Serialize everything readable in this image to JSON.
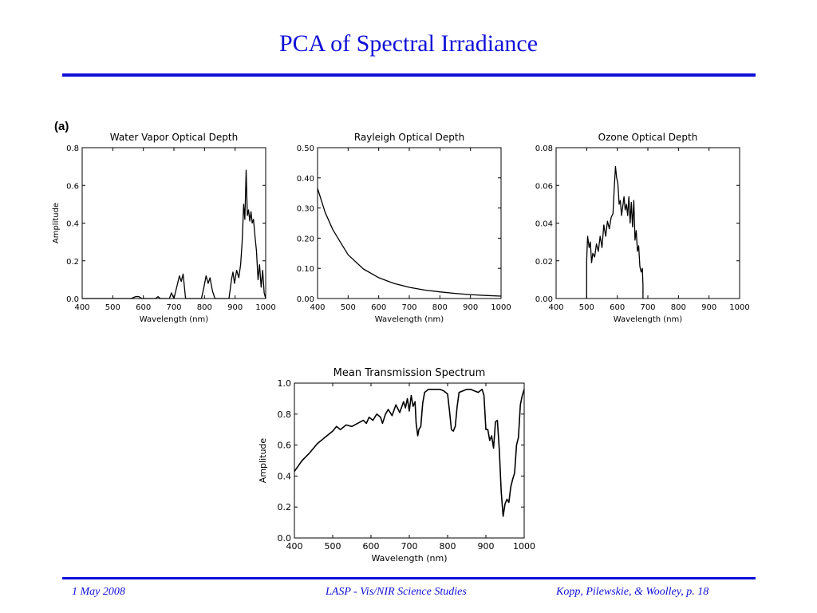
{
  "slide": {
    "title": "PCA of Spectral Irradiance",
    "panel_label": "(a)",
    "footer": {
      "date": "1 May 2008",
      "center": "LASP - Vis/NIR Science Studies",
      "right": "Kopp, Pilewskie, & Woolley, p. 18"
    },
    "colors": {
      "title": "#1010d8",
      "rule": "#1010d8",
      "line": "#000000"
    }
  },
  "chart_data": [
    {
      "id": "water",
      "type": "line",
      "title": "Water Vapor Optical Depth",
      "xlabel": "Wavelength (nm)",
      "ylabel": "Amplitude",
      "xlim": [
        400,
        1000
      ],
      "ylim": [
        0,
        0.8
      ],
      "xticks": [
        "400",
        "500",
        "600",
        "700",
        "800",
        "900",
        "1000"
      ],
      "yticks": [
        "0.0",
        "0.2",
        "0.4",
        "0.6",
        "0.8"
      ],
      "series": [
        {
          "x": [
            400,
            560,
            575,
            585,
            595,
            640,
            648,
            655,
            685,
            692,
            700,
            712,
            718,
            724,
            730,
            738,
            790,
            798,
            805,
            812,
            818,
            826,
            834,
            880,
            888,
            893,
            898,
            905,
            912,
            918,
            923,
            928,
            932,
            936,
            940,
            944,
            948,
            952,
            956,
            960,
            965,
            970,
            975,
            980,
            985,
            990,
            995,
            1000
          ],
          "y": [
            0.0,
            0.0,
            0.01,
            0.01,
            0.0,
            0.0,
            0.01,
            0.0,
            0.0,
            0.03,
            0.0,
            0.08,
            0.12,
            0.09,
            0.13,
            0.0,
            0.0,
            0.06,
            0.12,
            0.08,
            0.11,
            0.04,
            0.0,
            0.0,
            0.1,
            0.14,
            0.08,
            0.15,
            0.11,
            0.18,
            0.3,
            0.5,
            0.42,
            0.68,
            0.44,
            0.47,
            0.41,
            0.46,
            0.4,
            0.42,
            0.33,
            0.25,
            0.1,
            0.18,
            0.06,
            0.15,
            0.03,
            0.0
          ]
        }
      ]
    },
    {
      "id": "rayleigh",
      "type": "line",
      "title": "Rayleigh Optical Depth",
      "xlabel": "Wavelength (nm)",
      "ylabel": "",
      "xlim": [
        400,
        1000
      ],
      "ylim": [
        0,
        0.5
      ],
      "xticks": [
        "400",
        "500",
        "600",
        "700",
        "800",
        "900",
        "1000"
      ],
      "yticks": [
        "0.00",
        "0.10",
        "0.20",
        "0.30",
        "0.40",
        "0.50"
      ],
      "series": [
        {
          "x": [
            400,
            425,
            450,
            475,
            500,
            550,
            600,
            650,
            700,
            750,
            800,
            850,
            900,
            950,
            1000
          ],
          "y": [
            0.365,
            0.285,
            0.228,
            0.186,
            0.145,
            0.098,
            0.069,
            0.05,
            0.037,
            0.028,
            0.022,
            0.017,
            0.013,
            0.01,
            0.008
          ]
        }
      ]
    },
    {
      "id": "ozone",
      "type": "line",
      "title": "Ozone Optical Depth",
      "xlabel": "Wavelength (nm)",
      "ylabel": "",
      "xlim": [
        400,
        1000
      ],
      "ylim": [
        0,
        0.08
      ],
      "xticks": [
        "400",
        "500",
        "600",
        "700",
        "800",
        "900",
        "1000"
      ],
      "yticks": [
        "0.00",
        "0.02",
        "0.04",
        "0.06",
        "0.08"
      ],
      "series": [
        {
          "x": [
            500,
            500,
            503,
            508,
            512,
            516,
            520,
            526,
            532,
            538,
            544,
            550,
            556,
            562,
            568,
            574,
            580,
            586,
            590,
            594,
            598,
            602,
            606,
            610,
            614,
            618,
            622,
            626,
            630,
            634,
            638,
            642,
            646,
            650,
            654,
            658,
            662,
            666,
            670,
            674,
            678,
            682,
            684,
            684
          ],
          "y": [
            0.0,
            0.02,
            0.033,
            0.027,
            0.03,
            0.019,
            0.024,
            0.022,
            0.029,
            0.025,
            0.033,
            0.027,
            0.039,
            0.033,
            0.041,
            0.037,
            0.043,
            0.045,
            0.058,
            0.07,
            0.064,
            0.061,
            0.05,
            0.052,
            0.044,
            0.049,
            0.054,
            0.047,
            0.05,
            0.044,
            0.054,
            0.04,
            0.051,
            0.038,
            0.052,
            0.031,
            0.036,
            0.025,
            0.028,
            0.017,
            0.014,
            0.016,
            0.007,
            0.0
          ]
        }
      ]
    },
    {
      "id": "transmission",
      "type": "line",
      "title": "Mean Transmission Spectrum",
      "xlabel": "Wavelength (nm)",
      "ylabel": "Amplitude",
      "xlim": [
        400,
        1000
      ],
      "ylim": [
        0,
        1.0
      ],
      "xticks": [
        "400",
        "500",
        "600",
        "700",
        "800",
        "900",
        "1000"
      ],
      "yticks": [
        "0.0",
        "0.2",
        "0.4",
        "0.6",
        "0.8",
        "1.0"
      ],
      "series": [
        {
          "x": [
            400,
            420,
            440,
            460,
            480,
            500,
            510,
            520,
            535,
            550,
            565,
            580,
            588,
            595,
            605,
            615,
            625,
            630,
            638,
            645,
            655,
            665,
            675,
            685,
            690,
            695,
            700,
            705,
            710,
            715,
            718,
            722,
            725,
            730,
            735,
            740,
            745,
            750,
            760,
            770,
            780,
            790,
            800,
            805,
            810,
            815,
            820,
            825,
            830,
            840,
            850,
            860,
            870,
            880,
            890,
            895,
            900,
            905,
            910,
            915,
            920,
            925,
            930,
            935,
            940,
            945,
            950,
            955,
            960,
            965,
            970,
            975,
            980,
            985,
            990,
            995,
            1000
          ],
          "y": [
            0.43,
            0.5,
            0.55,
            0.61,
            0.65,
            0.69,
            0.72,
            0.7,
            0.73,
            0.72,
            0.74,
            0.76,
            0.74,
            0.78,
            0.76,
            0.8,
            0.78,
            0.74,
            0.8,
            0.83,
            0.79,
            0.86,
            0.81,
            0.88,
            0.84,
            0.9,
            0.82,
            0.92,
            0.85,
            0.88,
            0.74,
            0.66,
            0.7,
            0.72,
            0.87,
            0.94,
            0.95,
            0.96,
            0.96,
            0.96,
            0.96,
            0.95,
            0.93,
            0.82,
            0.7,
            0.69,
            0.72,
            0.85,
            0.94,
            0.95,
            0.96,
            0.96,
            0.95,
            0.94,
            0.96,
            0.92,
            0.7,
            0.7,
            0.63,
            0.66,
            0.58,
            0.75,
            0.76,
            0.57,
            0.3,
            0.14,
            0.22,
            0.25,
            0.23,
            0.33,
            0.38,
            0.42,
            0.6,
            0.65,
            0.86,
            0.92,
            0.96
          ]
        }
      ]
    }
  ]
}
